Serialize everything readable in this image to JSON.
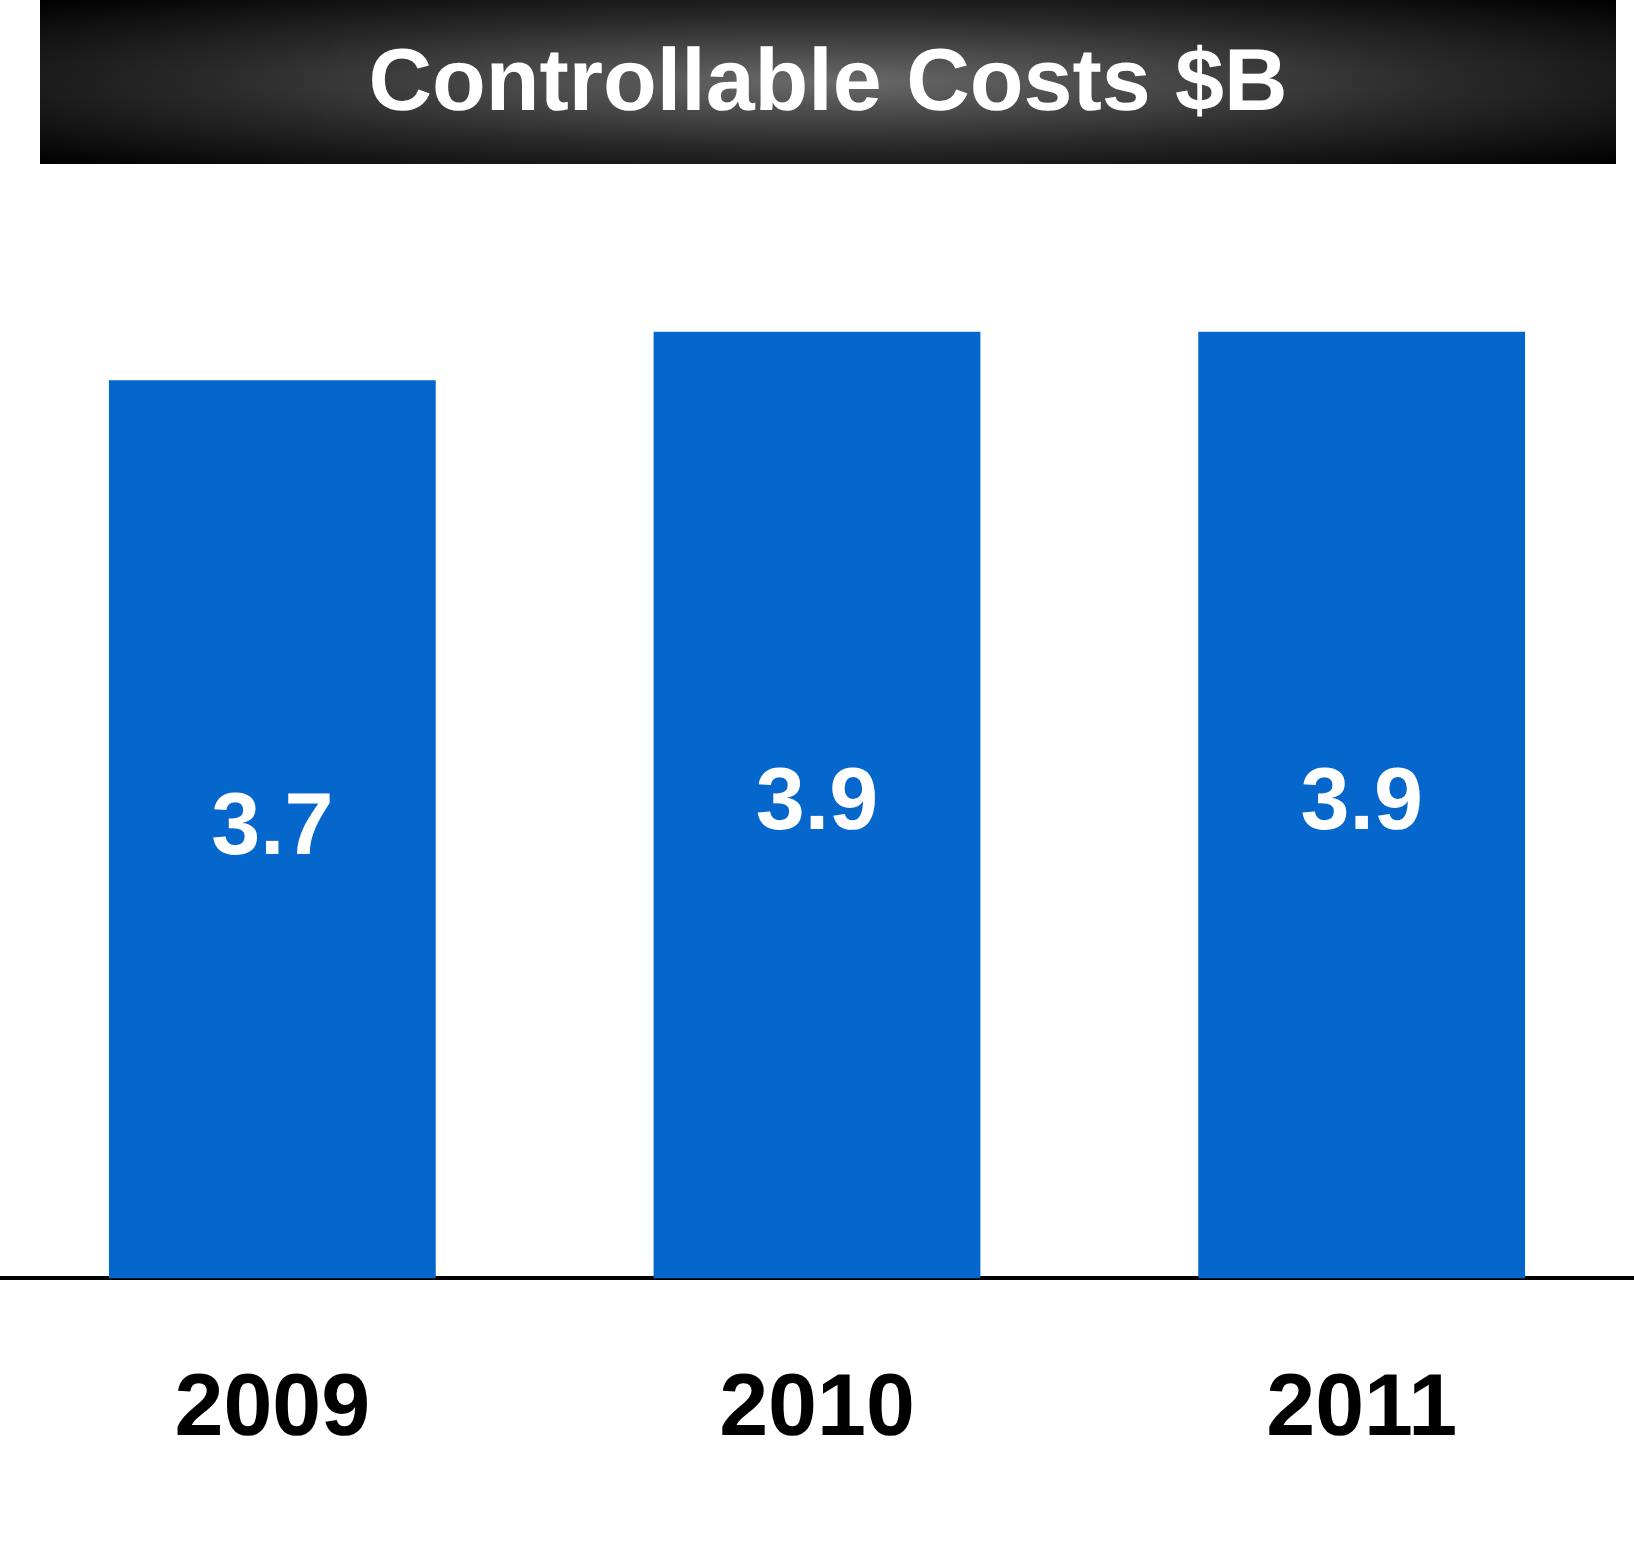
{
  "chart_data": {
    "type": "bar",
    "title": "Controllable Costs $B",
    "categories": [
      "2009",
      "2010",
      "2011"
    ],
    "values": [
      3.7,
      3.9,
      3.9
    ],
    "color": "#0566cc",
    "data_labels": true,
    "grid": false,
    "legend": false,
    "tick_labels": "x"
  }
}
